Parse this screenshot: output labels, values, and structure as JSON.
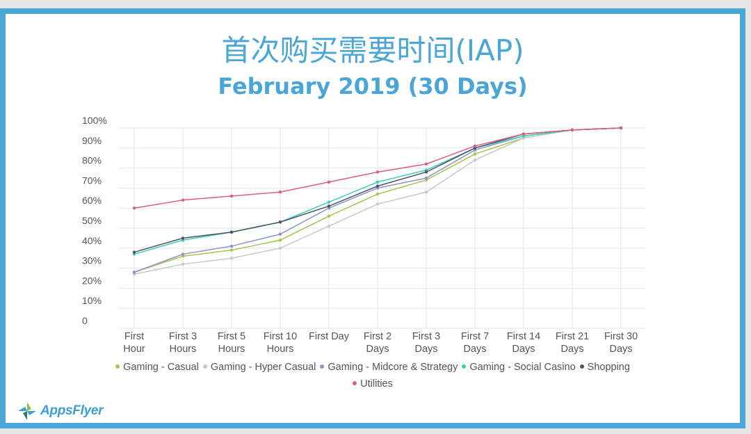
{
  "title": "首次购买需要时间(IAP)",
  "subtitle": "February 2019 (30 Days)",
  "logo": {
    "name": "appsflyer-logo-icon",
    "text": "AppsFlyer",
    "colors": [
      "#8bc34a",
      "#3a9fd4",
      "#2e7d5b"
    ]
  },
  "colors": {
    "frame": "#4aa6d6",
    "title": "#4aa6d6",
    "grid": "#e6e6e6"
  },
  "chart_data": {
    "type": "line",
    "categories": [
      [
        "First",
        "Hour"
      ],
      [
        "First 3",
        "Hours"
      ],
      [
        "First 5",
        "Hours"
      ],
      [
        "First 10",
        "Hours"
      ],
      [
        "First Day"
      ],
      [
        "First 2",
        "Days"
      ],
      [
        "First 3",
        "Days"
      ],
      [
        "First 7",
        "Days"
      ],
      [
        "First 14",
        "Days"
      ],
      [
        "First 21",
        "Days"
      ],
      [
        "First 30",
        "Days"
      ]
    ],
    "ylim": [
      0,
      100
    ],
    "yticks": [
      "0",
      "10%",
      "20%",
      "30%",
      "40%",
      "50%",
      "60%",
      "70%",
      "80%",
      "90%",
      "100%"
    ],
    "grid": true,
    "legend": "bottom",
    "series": [
      {
        "name": "Gaming - Casual",
        "color": "#a3c64b",
        "values": [
          28,
          36,
          39,
          44,
          56,
          67,
          74,
          87,
          95,
          99,
          100
        ]
      },
      {
        "name": "Gaming - Hyper Casual",
        "color": "#c8c8c8",
        "values": [
          27,
          32,
          35,
          40,
          51,
          62,
          68,
          84,
          95,
          99,
          100
        ]
      },
      {
        "name": "Gaming - Midcore & Strategy",
        "color": "#8e93c9",
        "values": [
          28,
          37,
          41,
          47,
          60,
          70,
          75,
          89,
          96,
          99,
          100
        ]
      },
      {
        "name": "Gaming - Social Casino",
        "color": "#3ccfb8",
        "values": [
          37,
          44,
          48,
          53,
          63,
          73,
          79,
          90,
          96,
          99,
          100
        ]
      },
      {
        "name": "Shopping",
        "color": "#4a5368",
        "values": [
          38,
          45,
          48,
          53,
          61,
          71,
          78,
          90,
          97,
          99,
          100
        ]
      },
      {
        "name": "Utilities",
        "color": "#d9607a",
        "values": [
          60,
          64,
          66,
          68,
          73,
          78,
          82,
          91,
          97,
          99,
          100
        ]
      }
    ]
  }
}
